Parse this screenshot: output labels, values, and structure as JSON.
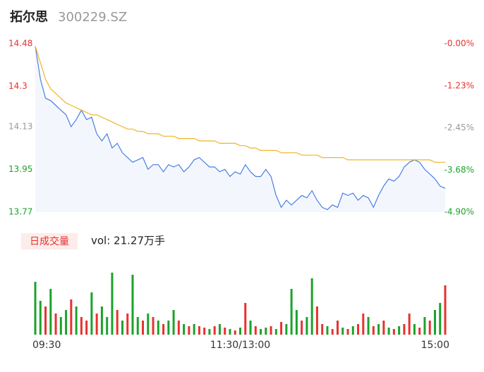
{
  "header": {
    "name": "拓尔思",
    "code": "300229.SZ"
  },
  "chart_data": [
    {
      "type": "line",
      "x": [
        0,
        3,
        6,
        9,
        12,
        15,
        18,
        21,
        24,
        27,
        30,
        33,
        36,
        39,
        42,
        45,
        48,
        51,
        54,
        57,
        60,
        63,
        66,
        69,
        72,
        75,
        78,
        81,
        84,
        87,
        90,
        93,
        96,
        99,
        102,
        105,
        108,
        111,
        114,
        117,
        120,
        123,
        126,
        129,
        132,
        135,
        138,
        141,
        144,
        147,
        150,
        153,
        156,
        159,
        162,
        165,
        168,
        171,
        174,
        177,
        180,
        183,
        186,
        189,
        192,
        195,
        198,
        201,
        204,
        207,
        210,
        213,
        216,
        219,
        222,
        225,
        228,
        231,
        234,
        237,
        240
      ],
      "xlim": [
        0,
        240
      ],
      "ylim": [
        13.77,
        14.48
      ],
      "yticks": [
        13.77,
        13.95,
        14.13,
        14.3,
        14.48
      ],
      "ytick_colors": [
        "#1aa32a",
        "#1aa32a",
        "#999999",
        "#e8312f",
        "#e8312f"
      ],
      "y2lim": [
        -4.9,
        0
      ],
      "y2ticks": [
        {
          "value": -4.9,
          "label": "-4.90%"
        },
        {
          "value": -3.68,
          "label": "-3.68%"
        },
        {
          "value": -2.45,
          "label": "-2.45%"
        },
        {
          "value": -1.23,
          "label": "-1.23%"
        },
        {
          "value": 0,
          "label": "-0.00%"
        }
      ],
      "series": [
        {
          "color": "#4a7fe0",
          "values": [
            14.47,
            14.33,
            14.25,
            14.24,
            14.22,
            14.2,
            14.18,
            14.13,
            14.16,
            14.2,
            14.16,
            14.17,
            14.1,
            14.07,
            14.1,
            14.04,
            14.06,
            14.02,
            14.0,
            13.98,
            13.99,
            14.0,
            13.95,
            13.97,
            13.97,
            13.94,
            13.97,
            13.96,
            13.97,
            13.94,
            13.96,
            13.99,
            14.0,
            13.98,
            13.96,
            13.96,
            13.94,
            13.95,
            13.92,
            13.94,
            13.93,
            13.97,
            13.94,
            13.92,
            13.92,
            13.95,
            13.92,
            13.84,
            13.79,
            13.82,
            13.8,
            13.82,
            13.84,
            13.83,
            13.86,
            13.82,
            13.79,
            13.78,
            13.8,
            13.79,
            13.85,
            13.84,
            13.85,
            13.82,
            13.84,
            13.83,
            13.79,
            13.84,
            13.88,
            13.91,
            13.9,
            13.92,
            13.96,
            13.98,
            13.99,
            13.98,
            13.95,
            13.93,
            13.91,
            13.88,
            13.87
          ]
        },
        {
          "color": "#f0b429",
          "values": [
            14.47,
            14.4,
            14.33,
            14.29,
            14.27,
            14.25,
            14.23,
            14.22,
            14.21,
            14.2,
            14.19,
            14.18,
            14.18,
            14.17,
            14.16,
            14.15,
            14.14,
            14.13,
            14.12,
            14.12,
            14.11,
            14.11,
            14.1,
            14.1,
            14.1,
            14.09,
            14.09,
            14.09,
            14.08,
            14.08,
            14.08,
            14.08,
            14.07,
            14.07,
            14.07,
            14.07,
            14.06,
            14.06,
            14.06,
            14.06,
            14.05,
            14.05,
            14.04,
            14.04,
            14.03,
            14.03,
            14.03,
            14.03,
            14.02,
            14.02,
            14.02,
            14.02,
            14.01,
            14.01,
            14.01,
            14.01,
            14.0,
            14.0,
            14.0,
            14.0,
            14.0,
            13.99,
            13.99,
            13.99,
            13.99,
            13.99,
            13.99,
            13.99,
            13.99,
            13.99,
            13.99,
            13.99,
            13.99,
            13.99,
            13.99,
            13.99,
            13.99,
            13.99,
            13.98,
            13.98,
            13.98
          ]
        }
      ]
    },
    {
      "type": "bar",
      "title": "日成交量",
      "subtitle": "vol: 21.27万手",
      "x": [
        0,
        3,
        6,
        9,
        12,
        15,
        18,
        21,
        24,
        27,
        30,
        33,
        36,
        39,
        42,
        45,
        48,
        51,
        54,
        57,
        60,
        63,
        66,
        69,
        72,
        75,
        78,
        81,
        84,
        87,
        90,
        93,
        96,
        99,
        102,
        105,
        108,
        111,
        114,
        117,
        120,
        123,
        126,
        129,
        132,
        135,
        138,
        141,
        144,
        147,
        150,
        153,
        156,
        159,
        162,
        165,
        168,
        171,
        174,
        177,
        180,
        183,
        186,
        189,
        192,
        195,
        198,
        201,
        204,
        207,
        210,
        213,
        216,
        219,
        222,
        225,
        228,
        231,
        234,
        237,
        240
      ],
      "xlim": [
        0,
        240
      ],
      "xticks": [
        {
          "value": 0,
          "label": "09:30"
        },
        {
          "value": 120,
          "label": "11:30/13:00"
        },
        {
          "value": 240,
          "label": "15:00"
        }
      ],
      "ylim": [
        0,
        4500
      ],
      "values": [
        3750,
        2400,
        2000,
        3250,
        1500,
        1250,
        1750,
        2500,
        2000,
        1250,
        1000,
        3000,
        1500,
        2000,
        1250,
        4400,
        1750,
        1000,
        1500,
        4250,
        1250,
        1000,
        1500,
        1250,
        1000,
        750,
        1000,
        1750,
        1000,
        750,
        600,
        750,
        600,
        500,
        400,
        600,
        750,
        500,
        400,
        300,
        500,
        2250,
        1000,
        600,
        400,
        500,
        600,
        400,
        900,
        750,
        3250,
        1750,
        1000,
        1250,
        4000,
        2000,
        750,
        600,
        400,
        1000,
        500,
        400,
        600,
        750,
        1500,
        1250,
        600,
        750,
        1000,
        500,
        400,
        600,
        750,
        1500,
        750,
        500,
        1250,
        1000,
        1750,
        2250,
        3500
      ],
      "colors": [
        "#1aa32a",
        "#1aa32a",
        "#e8312f",
        "#1aa32a",
        "#e8312f",
        "#1aa32a",
        "#1aa32a",
        "#e8312f",
        "#1aa32a",
        "#e8312f",
        "#e8312f",
        "#1aa32a",
        "#e8312f",
        "#1aa32a",
        "#1aa32a",
        "#1aa32a",
        "#e8312f",
        "#1aa32a",
        "#e8312f",
        "#1aa32a",
        "#1aa32a",
        "#e8312f",
        "#1aa32a",
        "#e8312f",
        "#1aa32a",
        "#e8312f",
        "#1aa32a",
        "#1aa32a",
        "#e8312f",
        "#1aa32a",
        "#e8312f",
        "#1aa32a",
        "#e8312f",
        "#e8312f",
        "#1aa32a",
        "#e8312f",
        "#1aa32a",
        "#e8312f",
        "#1aa32a",
        "#e8312f",
        "#1aa32a",
        "#e8312f",
        "#1aa32a",
        "#e8312f",
        "#1aa32a",
        "#1aa32a",
        "#e8312f",
        "#1aa32a",
        "#e8312f",
        "#1aa32a",
        "#1aa32a",
        "#1aa32a",
        "#e8312f",
        "#1aa32a",
        "#1aa32a",
        "#e8312f",
        "#e8312f",
        "#1aa32a",
        "#e8312f",
        "#e8312f",
        "#1aa32a",
        "#e8312f",
        "#1aa32a",
        "#e8312f",
        "#e8312f",
        "#1aa32a",
        "#e8312f",
        "#1aa32a",
        "#e8312f",
        "#1aa32a",
        "#e8312f",
        "#1aa32a",
        "#e8312f",
        "#e8312f",
        "#1aa32a",
        "#e8312f",
        "#1aa32a",
        "#e8312f",
        "#1aa32a",
        "#1aa32a",
        "#e8312f"
      ]
    }
  ]
}
